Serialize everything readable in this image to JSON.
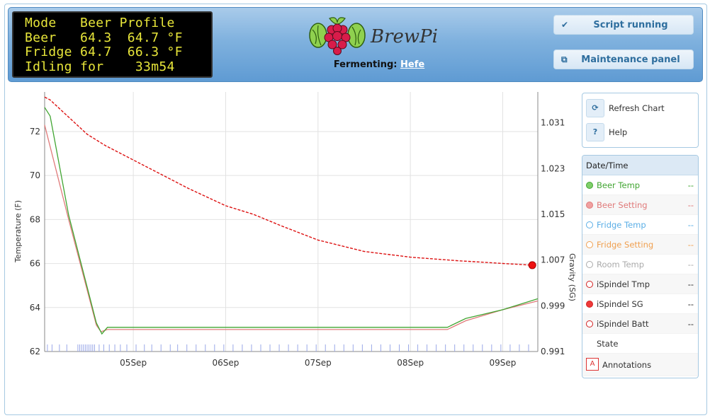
{
  "lcd": {
    "lines": [
      "Mode   Beer Profile",
      "Beer   64.3  64.7 °F",
      "Fridge 64.7  66.3 °F",
      "Idling for    33m54"
    ]
  },
  "logo": {
    "text": "BrewPi"
  },
  "status": {
    "prefix": "Fermenting:",
    "beer_name": "Hefe"
  },
  "buttons": {
    "script": {
      "label": "Script running",
      "icon": "checkmark-icon"
    },
    "maintenance": {
      "label": "Maintenance panel",
      "icon": "window-icon"
    }
  },
  "controls": {
    "refresh": {
      "label": "Refresh Chart",
      "icon": "refresh-icon"
    },
    "help": {
      "label": "Help",
      "icon": "?"
    }
  },
  "legend": {
    "header": "Date/Time",
    "rows": [
      {
        "name": "Beer Temp",
        "value": "--",
        "color": "#41a532",
        "fill": "#7fcf6a",
        "style": "filled"
      },
      {
        "name": "Beer Setting",
        "value": "--",
        "color": "#e07a7a",
        "fill": "#f0a0a0",
        "style": "filled"
      },
      {
        "name": "Fridge Temp",
        "value": "--",
        "color": "#5aaee6",
        "fill": "#ffffff",
        "style": "open"
      },
      {
        "name": "Fridge Setting",
        "value": "--",
        "color": "#f0a050",
        "fill": "#ffffff",
        "style": "open"
      },
      {
        "name": "Room Temp",
        "value": "--",
        "color": "#aaaaaa",
        "fill": "#ffffff",
        "style": "open"
      },
      {
        "name": "iSpindel Tmp",
        "value": "--",
        "color": "#d42020",
        "fill": "#ffffff",
        "style": "open",
        "text_color": "#333333"
      },
      {
        "name": "iSpindel SG",
        "value": "--",
        "color": "#d42020",
        "fill": "#ee3a3a",
        "style": "filled",
        "text_color": "#333333"
      },
      {
        "name": "iSpindel Batt",
        "value": "--",
        "color": "#d42020",
        "fill": "#ffffff",
        "style": "open",
        "text_color": "#333333"
      }
    ],
    "state_label": "State",
    "annotations_label": "Annotations"
  },
  "chart_data": {
    "type": "line",
    "ylabel": "Temperature (F)",
    "y2label": "Gravity (SG)",
    "x_ticks": [
      "05Sep",
      "06Sep",
      "07Sep",
      "08Sep",
      "09Sep"
    ],
    "x_tick_days": [
      5,
      6,
      7,
      8,
      9
    ],
    "xlim_days": [
      4.04,
      9.38
    ],
    "y_ticks": [
      62,
      64,
      66,
      68,
      70,
      72
    ],
    "ylim": [
      62,
      73.8
    ],
    "y2_ticks": [
      0.991,
      0.999,
      1.007,
      1.015,
      1.023,
      1.031
    ],
    "y2lim": [
      0.991,
      1.0364
    ],
    "grid": true,
    "series": [
      {
        "name": "Beer Setting",
        "axis": "left",
        "color": "#e07a7a",
        "points": [
          [
            4.04,
            72.3
          ],
          [
            4.3,
            68.0
          ],
          [
            4.6,
            63.2
          ],
          [
            4.65,
            62.9
          ],
          [
            4.72,
            63.0
          ],
          [
            8.4,
            63.0
          ],
          [
            8.6,
            63.4
          ],
          [
            9.0,
            63.9
          ],
          [
            9.38,
            64.3
          ]
        ]
      },
      {
        "name": "Beer Temp",
        "axis": "left",
        "color": "#41a532",
        "points": [
          [
            4.04,
            73.1
          ],
          [
            4.1,
            72.7
          ],
          [
            4.3,
            68.2
          ],
          [
            4.6,
            63.3
          ],
          [
            4.66,
            62.8
          ],
          [
            4.72,
            63.1
          ],
          [
            8.4,
            63.1
          ],
          [
            8.6,
            63.5
          ],
          [
            9.0,
            63.9
          ],
          [
            9.38,
            64.4
          ]
        ]
      },
      {
        "name": "iSpindel SG",
        "axis": "right",
        "color": "#dd1111",
        "dashed": true,
        "points": [
          [
            4.04,
            1.0355
          ],
          [
            4.1,
            1.035
          ],
          [
            4.3,
            1.032
          ],
          [
            4.5,
            1.029
          ],
          [
            4.7,
            1.027
          ],
          [
            5.0,
            1.0245
          ],
          [
            5.3,
            1.022
          ],
          [
            5.6,
            1.0195
          ],
          [
            6.0,
            1.0165
          ],
          [
            6.3,
            1.015
          ],
          [
            6.6,
            1.013
          ],
          [
            7.0,
            1.0105
          ],
          [
            7.5,
            1.0085
          ],
          [
            8.0,
            1.0075
          ],
          [
            8.5,
            1.0069
          ],
          [
            9.0,
            1.0064
          ],
          [
            9.32,
            1.0061
          ]
        ]
      }
    ],
    "end_marker": {
      "series": "iSpindel SG",
      "day": 9.32,
      "value": 1.0061
    },
    "annotation_days": [
      4.07,
      4.12,
      4.2,
      4.28,
      4.4,
      4.42,
      4.44,
      4.46,
      4.48,
      4.5,
      4.52,
      4.54,
      4.56,
      4.58,
      4.63,
      4.68,
      4.74,
      4.8,
      4.86,
      4.93,
      5.03,
      5.12,
      5.2,
      5.3,
      5.4,
      5.48,
      5.58,
      5.68,
      5.78,
      5.88,
      5.98,
      6.08,
      6.18,
      6.28,
      6.38,
      6.48,
      6.58,
      6.68,
      6.78,
      6.88,
      6.98,
      7.08,
      7.18,
      7.28,
      7.38,
      7.48,
      7.58,
      7.68,
      7.78,
      7.88,
      7.98,
      8.08,
      8.18,
      8.28,
      8.38,
      8.48,
      8.58,
      8.68,
      8.78,
      8.88,
      8.98,
      9.08,
      9.18,
      9.28
    ]
  }
}
